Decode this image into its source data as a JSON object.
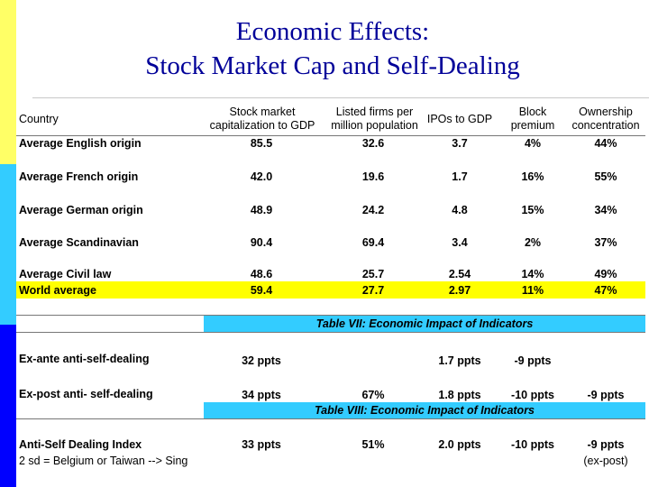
{
  "slide": {
    "title_line1": "Economic Effects:",
    "title_line2": "Stock Market Cap and Self-Dealing"
  },
  "table": {
    "headers": {
      "country": "Country",
      "stock_cap_1": "Stock market",
      "stock_cap_2": "capitalization to GDP",
      "listed_1": "Listed firms per",
      "listed_2": "million population",
      "ipos": "IPOs to GDP",
      "block_1": "Block",
      "block_2": "premium",
      "own_1": "Ownership",
      "own_2": "concentration"
    },
    "rows": [
      {
        "label": "Average English origin",
        "stock_cap": "85.5",
        "listed": "32.6",
        "ipos": "3.7",
        "block": "4%",
        "own": "44%"
      },
      {
        "label": "Average French origin",
        "stock_cap": "42.0",
        "listed": "19.6",
        "ipos": "1.7",
        "block": "16%",
        "own": "55%"
      },
      {
        "label": "Average German origin",
        "stock_cap": "48.9",
        "listed": "24.2",
        "ipos": "4.8",
        "block": "15%",
        "own": "34%"
      },
      {
        "label": "Average Scandinavian",
        "stock_cap": "90.4",
        "listed": "69.4",
        "ipos": "3.4",
        "block": "2%",
        "own": "37%"
      },
      {
        "label": "Average Civil law",
        "stock_cap": "48.6",
        "listed": "25.7",
        "ipos": "2.54",
        "block": "14%",
        "own": "49%"
      },
      {
        "label": "World average",
        "stock_cap": "59.4",
        "listed": "27.7",
        "ipos": "2.97",
        "block": "11%",
        "own": "47%"
      }
    ],
    "table7_title": "Table VII: Economic Impact of Indicators",
    "table8_title": "Table VIII: Economic Impact of Indicators",
    "impact_rows": [
      {
        "label": "Ex-ante anti-self-dealing",
        "stock_cap": "32 ppts",
        "listed": "",
        "ipos": "1.7 ppts",
        "block": "-9 ppts",
        "own": ""
      },
      {
        "label": "Ex-post anti- self-dealing",
        "stock_cap": "34 ppts",
        "listed": "67%",
        "ipos": "1.8 ppts",
        "block": "-10 ppts",
        "own": "-9 ppts"
      },
      {
        "label": "Anti-Self Dealing Index",
        "stock_cap": "33 ppts",
        "listed": "51%",
        "ipos": "2.0 ppts",
        "block": "-10 ppts",
        "own": "-9 ppts"
      }
    ],
    "index_note": "2 sd = Belgium or Taiwan --> Sing",
    "index_own_note": "(ex-post)"
  }
}
